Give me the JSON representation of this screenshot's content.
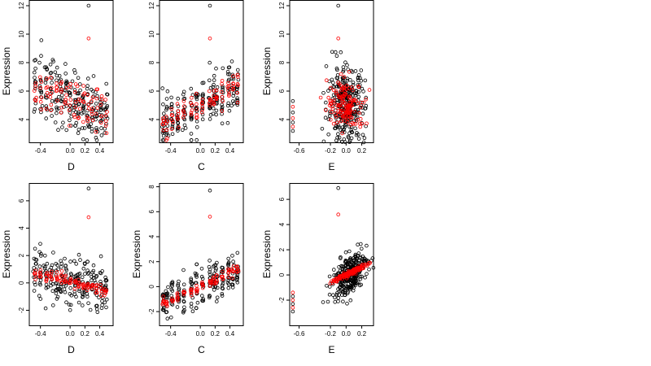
{
  "colors": {
    "observed": "#000000",
    "fitted": "#ff0000"
  },
  "chart_data": [
    {
      "type": "scatter",
      "xlabel": "D",
      "ylabel": "Expression",
      "xlim": [
        -0.55,
        0.58
      ],
      "ylim": [
        2.4,
        12.4
      ],
      "xticks": [
        -0.4,
        0.0,
        0.2,
        0.4
      ],
      "yticks": [
        4,
        6,
        8,
        10,
        12
      ],
      "grid": false,
      "clusters": [
        -0.47,
        -0.4,
        -0.32,
        -0.25,
        -0.18,
        -0.12,
        -0.06,
        0.0,
        0.07,
        0.12,
        0.18,
        0.24,
        0.3,
        0.36,
        0.42,
        0.48
      ],
      "obs": {
        "trend": [
          5.35,
          -2.0
        ],
        "spread": 1.15,
        "n_per_cluster": 14,
        "jitter": 0.012
      },
      "fit": {
        "trend": [
          5.35,
          -2.0
        ],
        "spread": 0.75,
        "n_per_cluster": 6,
        "jitter": 0.008
      },
      "outliers": [
        {
          "x": 0.25,
          "y": 12.0,
          "color": "observed"
        },
        {
          "x": 0.25,
          "y": 9.7,
          "color": "fitted"
        }
      ]
    },
    {
      "type": "scatter",
      "xlabel": "C",
      "ylabel": "",
      "xlim": [
        -0.55,
        0.58
      ],
      "ylim": [
        2.4,
        12.4
      ],
      "xticks": [
        -0.4,
        0.0,
        0.2,
        0.4
      ],
      "yticks": [
        4,
        6,
        8,
        10,
        12
      ],
      "grid": false,
      "clusters": [
        -0.5,
        -0.45,
        -0.38,
        -0.3,
        -0.22,
        -0.12,
        -0.05,
        0.03,
        0.13,
        0.18,
        0.22,
        0.3,
        0.38,
        0.44,
        0.5
      ],
      "obs": {
        "trend": [
          5.0,
          2.5
        ],
        "spread": 0.9,
        "n_per_cluster": 14,
        "jitter": 0.008
      },
      "fit": {
        "trend": [
          5.0,
          2.5
        ],
        "spread": 0.45,
        "n_per_cluster": 6,
        "jitter": 0.006
      },
      "outliers": [
        {
          "x": 0.13,
          "y": 12.0,
          "color": "observed"
        },
        {
          "x": 0.13,
          "y": 9.7,
          "color": "fitted"
        }
      ]
    },
    {
      "type": "scatter",
      "xlabel": "E",
      "ylabel": "Expression",
      "xlim": [
        -0.72,
        0.35
      ],
      "ylim": [
        2.4,
        12.4
      ],
      "xticks": [
        -0.6,
        -0.2,
        0.0,
        0.2
      ],
      "yticks": [
        4,
        6,
        8,
        10,
        12
      ],
      "grid": false,
      "clusters": [],
      "obs": {
        "center": [
          0.0,
          5.0
        ],
        "sx": 0.12,
        "sy": 1.35,
        "rho": 0.05,
        "n": 300
      },
      "fit": {
        "center": [
          0.0,
          5.0
        ],
        "sx": 0.12,
        "sy": 0.9,
        "rho": -0.2,
        "n": 140
      },
      "edge": {
        "x": -0.68,
        "ys": [
          3.2,
          3.5,
          3.8,
          4.1,
          4.5,
          4.9,
          5.3
        ]
      },
      "outliers": [
        {
          "x": -0.1,
          "y": 12.0,
          "color": "observed"
        },
        {
          "x": -0.1,
          "y": 9.7,
          "color": "fitted"
        }
      ]
    },
    {
      "type": "scatter",
      "xlabel": "D",
      "ylabel": "Expression",
      "xlim": [
        -0.55,
        0.58
      ],
      "ylim": [
        -3.1,
        7.3
      ],
      "xticks": [
        -0.4,
        0.0,
        0.2,
        0.4
      ],
      "yticks": [
        -2,
        0,
        2,
        4,
        6
      ],
      "grid": false,
      "clusters": [
        -0.47,
        -0.4,
        -0.32,
        -0.25,
        -0.18,
        -0.12,
        -0.06,
        0.0,
        0.07,
        0.12,
        0.18,
        0.24,
        0.3,
        0.36,
        0.42,
        0.48
      ],
      "obs": {
        "trend": [
          0.1,
          -1.3
        ],
        "spread": 0.85,
        "n_per_cluster": 14,
        "jitter": 0.012
      },
      "fit": {
        "trend": [
          0.05,
          -1.3
        ],
        "spread": 0.2,
        "n_per_cluster": 6,
        "jitter": 0.008
      },
      "outliers": [
        {
          "x": 0.25,
          "y": 6.9,
          "color": "observed"
        },
        {
          "x": 0.25,
          "y": 4.8,
          "color": "fitted"
        }
      ]
    },
    {
      "type": "scatter",
      "xlabel": "C",
      "ylabel": "Expression",
      "xlim": [
        -0.55,
        0.58
      ],
      "ylim": [
        -3.1,
        8.3
      ],
      "xticks": [
        -0.4,
        0.0,
        0.2,
        0.4
      ],
      "yticks": [
        -2,
        0,
        2,
        4,
        6,
        8
      ],
      "grid": false,
      "clusters": [
        -0.5,
        -0.45,
        -0.38,
        -0.3,
        -0.22,
        -0.12,
        -0.05,
        0.03,
        0.13,
        0.18,
        0.22,
        0.3,
        0.38,
        0.44,
        0.5
      ],
      "obs": {
        "trend": [
          0.0,
          2.6
        ],
        "spread": 0.8,
        "n_per_cluster": 14,
        "jitter": 0.008
      },
      "fit": {
        "trend": [
          0.0,
          2.6
        ],
        "spread": 0.2,
        "n_per_cluster": 6,
        "jitter": 0.006
      },
      "outliers": [
        {
          "x": 0.13,
          "y": 7.7,
          "color": "observed"
        },
        {
          "x": 0.13,
          "y": 5.6,
          "color": "fitted"
        }
      ]
    },
    {
      "type": "scatter",
      "xlabel": "E",
      "ylabel": "Expression",
      "xlim": [
        -0.72,
        0.35
      ],
      "ylim": [
        -4.0,
        7.3
      ],
      "xticks": [
        -0.6,
        -0.2,
        0.0,
        0.2
      ],
      "yticks": [
        -2,
        0,
        2,
        4,
        6
      ],
      "grid": false,
      "clusters": [],
      "obs": {
        "center": [
          0.05,
          0.1
        ],
        "sx": 0.11,
        "sy": 0.9,
        "rho": 0.55,
        "n": 300
      },
      "fit": {
        "center": [
          0.05,
          0.15
        ],
        "sx": 0.12,
        "sy": 0.38,
        "rho": 0.96,
        "n": 140
      },
      "edge": {
        "x": -0.68,
        "ys": [
          -2.9,
          -2.6,
          -2.3,
          -2.0,
          -1.7,
          -1.4
        ]
      },
      "outliers": [
        {
          "x": -0.1,
          "y": 6.9,
          "color": "observed"
        },
        {
          "x": -0.1,
          "y": 4.8,
          "color": "fitted"
        }
      ]
    }
  ]
}
